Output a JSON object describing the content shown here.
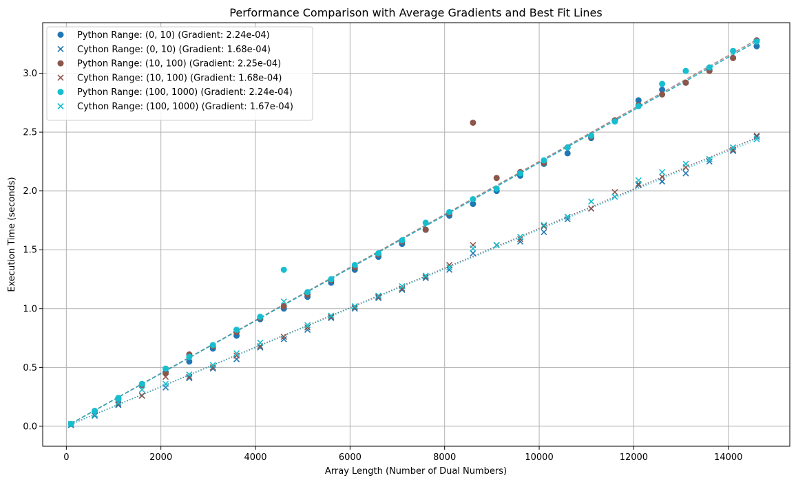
{
  "chart_data": {
    "type": "scatter",
    "title": "Performance Comparison with Average Gradients and Best Fit Lines",
    "xlabel": "Array Length (Number of Dual Numbers)",
    "ylabel": "Execution Time (seconds)",
    "xlim": [
      -500,
      15300
    ],
    "ylim": [
      -0.17,
      3.43
    ],
    "xticks": [
      0,
      2000,
      4000,
      6000,
      8000,
      10000,
      12000,
      14000
    ],
    "yticks": [
      0.0,
      0.5,
      1.0,
      1.5,
      2.0,
      2.5,
      3.0
    ],
    "xtick_labels": [
      "0",
      "2000",
      "4000",
      "6000",
      "8000",
      "10000",
      "12000",
      "14000"
    ],
    "ytick_labels": [
      "0.0",
      "0.5",
      "1.0",
      "1.5",
      "2.0",
      "2.5",
      "3.0"
    ],
    "grid": true,
    "legend_position": "top-left",
    "x": [
      100,
      600,
      1100,
      1600,
      2100,
      2600,
      3100,
      3600,
      4100,
      4600,
      5100,
      5600,
      6100,
      6600,
      7100,
      7600,
      8100,
      8600,
      9100,
      9600,
      10100,
      10600,
      11100,
      11600,
      12100,
      12600,
      13100,
      13600,
      14100,
      14600
    ],
    "series": [
      {
        "name": "Python Range: (0, 10) (Gradient: 2.24e-04)",
        "marker": "circle",
        "color": "#1f77b4",
        "fit_style": "dashed",
        "fit": [
          0.0,
          0.000224
        ],
        "values": [
          0.02,
          0.12,
          0.23,
          0.35,
          0.46,
          0.55,
          0.66,
          0.77,
          0.91,
          1.0,
          1.1,
          1.22,
          1.33,
          1.44,
          1.55,
          1.67,
          1.79,
          1.89,
          2.0,
          2.13,
          2.23,
          2.32,
          2.45,
          2.6,
          2.77,
          2.86,
          2.92,
          3.03,
          3.13,
          3.23
        ]
      },
      {
        "name": "Cython Range: (0, 10) (Gradient: 1.68e-04)",
        "marker": "x",
        "color": "#1f77b4",
        "fit_style": "dotted",
        "fit": [
          0.0,
          0.000168
        ],
        "values": [
          0.01,
          0.09,
          0.18,
          0.26,
          0.33,
          0.41,
          0.49,
          0.57,
          0.67,
          0.74,
          0.82,
          0.92,
          1.0,
          1.09,
          1.16,
          1.26,
          1.33,
          1.47,
          1.54,
          1.57,
          1.65,
          1.76,
          1.85,
          1.95,
          2.05,
          2.08,
          2.15,
          2.25,
          2.34,
          2.46
        ]
      },
      {
        "name": "Python Range: (10, 100) (Gradient: 2.25e-04)",
        "marker": "circle",
        "color": "#8c564b",
        "fit_style": "dashed",
        "fit": [
          0.0,
          0.000225
        ],
        "values": [
          0.02,
          0.13,
          0.24,
          0.35,
          0.45,
          0.61,
          0.68,
          0.8,
          0.92,
          1.02,
          1.12,
          1.24,
          1.35,
          1.46,
          1.57,
          1.67,
          1.81,
          2.58,
          2.11,
          2.16,
          2.24,
          2.37,
          2.46,
          2.6,
          2.73,
          2.82,
          2.92,
          3.02,
          3.13,
          3.28
        ]
      },
      {
        "name": "Cython Range: (10, 100) (Gradient: 1.68e-04)",
        "marker": "x",
        "color": "#8c564b",
        "fit_style": "dotted",
        "fit": [
          0.0,
          0.000168
        ],
        "values": [
          0.02,
          0.1,
          0.19,
          0.26,
          0.42,
          0.42,
          0.5,
          0.6,
          0.68,
          0.76,
          0.84,
          0.93,
          1.01,
          1.1,
          1.17,
          1.27,
          1.37,
          1.54,
          1.54,
          1.59,
          1.7,
          1.78,
          1.85,
          1.99,
          2.06,
          2.12,
          2.2,
          2.27,
          2.35,
          2.47
        ]
      },
      {
        "name": "Python Range: (100, 1000) (Gradient: 2.24e-04)",
        "marker": "circle",
        "color": "#17becf",
        "fit_style": "dashed",
        "fit": [
          0.0,
          0.000224
        ],
        "values": [
          0.02,
          0.13,
          0.24,
          0.36,
          0.49,
          0.59,
          0.69,
          0.82,
          0.93,
          1.33,
          1.14,
          1.25,
          1.37,
          1.47,
          1.58,
          1.73,
          1.82,
          1.93,
          2.02,
          2.15,
          2.26,
          2.37,
          2.47,
          2.59,
          2.72,
          2.91,
          3.02,
          3.05,
          3.19,
          3.27
        ]
      },
      {
        "name": "Cython Range: (100, 1000) (Gradient: 1.67e-04)",
        "marker": "x",
        "color": "#17becf",
        "fit_style": "dotted",
        "fit": [
          0.0,
          0.000167
        ],
        "values": [
          0.02,
          0.1,
          0.2,
          0.31,
          0.36,
          0.44,
          0.52,
          0.62,
          0.71,
          1.06,
          0.86,
          0.94,
          1.02,
          1.11,
          1.19,
          1.28,
          1.35,
          1.51,
          1.54,
          1.61,
          1.71,
          1.78,
          1.91,
          1.95,
          2.09,
          2.16,
          2.23,
          2.27,
          2.37,
          2.44
        ]
      }
    ]
  }
}
